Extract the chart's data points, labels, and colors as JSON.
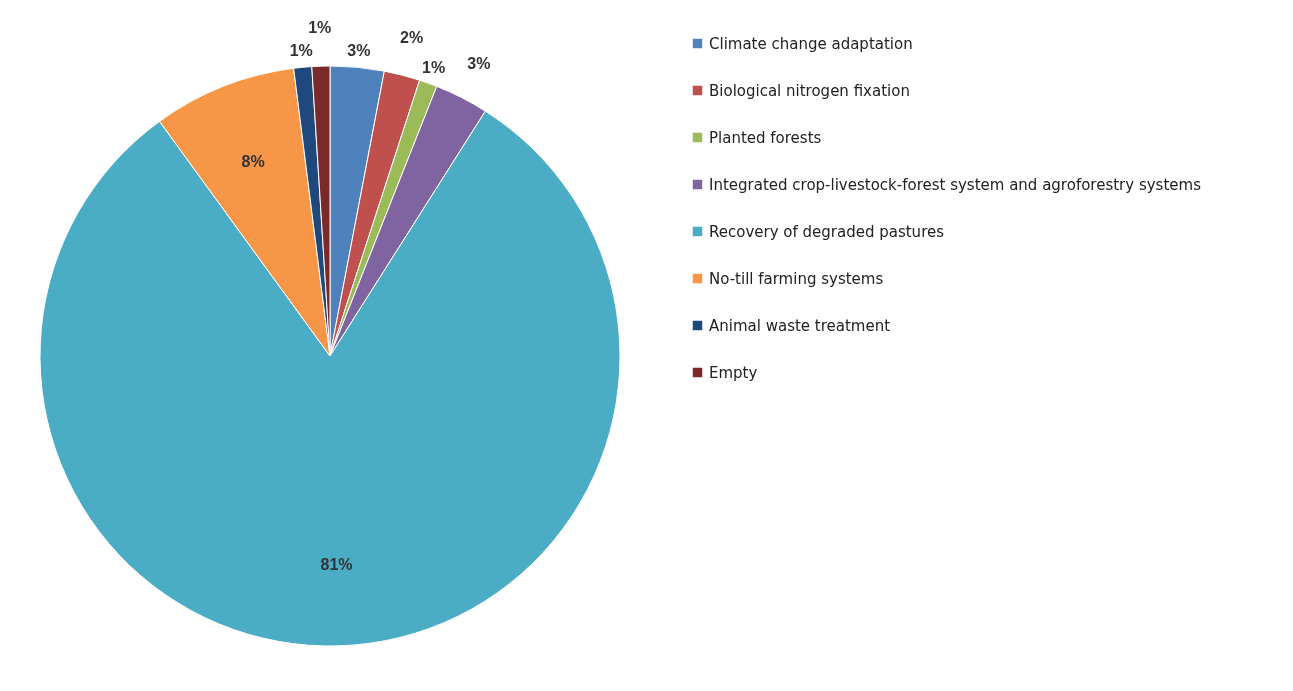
{
  "chart_data": {
    "type": "pie",
    "categories": [
      "Climate change adaptation",
      "Biological nitrogen fixation",
      "Planted forests",
      "Integrated crop-livestock-forest system and agroforestry systems",
      "Recovery of degraded pastures",
      "No-till farming systems",
      "Animal waste treatment",
      "Empty"
    ],
    "values": [
      3,
      2,
      1,
      3,
      81,
      8,
      1,
      1
    ],
    "colors": [
      "#4f81bd",
      "#c0504d",
      "#9bbb59",
      "#8064a2",
      "#4bacc6",
      "#f79646",
      "#1f497d",
      "#7b2a2a"
    ],
    "value_labels": [
      "3%",
      "2%",
      "1%",
      "3%",
      "81%",
      "8%",
      "1%",
      "1%"
    ],
    "legend": "right"
  }
}
